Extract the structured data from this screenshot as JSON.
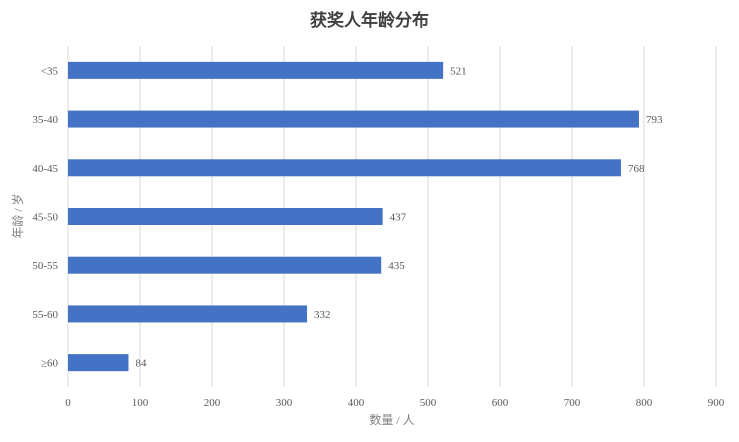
{
  "chart_data": {
    "type": "bar",
    "orientation": "horizontal",
    "title": "获奖人年龄分布",
    "xlabel": "数量  / 人",
    "ylabel": "年龄 / 岁",
    "categories": [
      "<35",
      "35-40",
      "40-45",
      "45-50",
      "50-55",
      "55-60",
      "≥60"
    ],
    "values": [
      521,
      793,
      768,
      437,
      435,
      332,
      84
    ],
    "xlim": [
      0,
      900
    ],
    "xticks": [
      0,
      100,
      200,
      300,
      400,
      500,
      600,
      700,
      800,
      900
    ],
    "grid": "vertical",
    "data_labels": true,
    "bar_color": "#4472C4",
    "grid_color": "#d9d9d9"
  }
}
